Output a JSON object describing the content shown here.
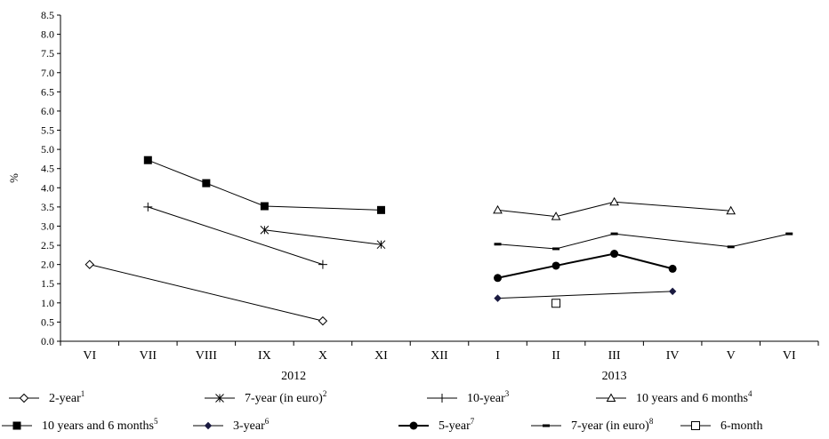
{
  "chart_data": {
    "type": "line",
    "ylabel": "%",
    "ylim": [
      0,
      8.5
    ],
    "y_ticks": [
      "0.0",
      "0.5",
      "1.0",
      "1.5",
      "2.0",
      "2.5",
      "3.0",
      "3.5",
      "4.0",
      "4.5",
      "5.0",
      "5.5",
      "6.0",
      "6.5",
      "7.0",
      "7.5",
      "8.0",
      "8.5"
    ],
    "categories": [
      "VI",
      "VII",
      "VIII",
      "IX",
      "X",
      "XI",
      "XII",
      "I",
      "II",
      "III",
      "IV",
      "V",
      "VI"
    ],
    "year_labels": [
      {
        "text": "2012",
        "category_index": 3.5
      },
      {
        "text": "2013",
        "category_index": 9
      }
    ],
    "legend_position": "bottom",
    "series": [
      {
        "name": "2-year",
        "sup": "1",
        "marker": "diamond-open",
        "line_width": 1,
        "values": [
          2.0,
          null,
          null,
          null,
          0.53,
          null,
          null,
          null,
          null,
          null,
          null,
          null,
          null
        ]
      },
      {
        "name": "7-year (in euro)",
        "sup": "2",
        "marker": "star",
        "line_width": 1,
        "values": [
          null,
          null,
          null,
          2.9,
          null,
          2.52,
          null,
          null,
          null,
          null,
          null,
          null,
          null
        ]
      },
      {
        "name": "10-year",
        "sup": "3",
        "marker": "plus",
        "line_width": 1,
        "values": [
          null,
          3.5,
          null,
          null,
          2.0,
          null,
          null,
          null,
          null,
          null,
          null,
          null,
          null
        ]
      },
      {
        "name": "10 years and 6 months",
        "sup": "4",
        "marker": "triangle-open",
        "line_width": 1,
        "values": [
          null,
          null,
          null,
          null,
          null,
          null,
          null,
          3.42,
          3.25,
          3.63,
          null,
          3.4,
          null
        ]
      },
      {
        "name": "10 years and 6 months",
        "sup": "5",
        "marker": "square-filled",
        "line_width": 1,
        "values": [
          null,
          4.72,
          4.12,
          3.52,
          null,
          3.42,
          null,
          null,
          null,
          null,
          null,
          null,
          null
        ]
      },
      {
        "name": "3-year",
        "sup": "6",
        "marker": "diamond-filled",
        "line_width": 1,
        "values": [
          null,
          null,
          null,
          null,
          null,
          null,
          null,
          1.12,
          null,
          null,
          1.3,
          null,
          null
        ]
      },
      {
        "name": "5-year",
        "sup": "7",
        "marker": "circle-filled",
        "line_width": 2,
        "values": [
          null,
          null,
          null,
          null,
          null,
          null,
          null,
          1.65,
          1.97,
          2.28,
          1.89,
          null,
          null
        ]
      },
      {
        "name": "7-year (in euro)",
        "sup": "8",
        "marker": "dash",
        "line_width": 1,
        "values": [
          null,
          null,
          null,
          null,
          null,
          null,
          null,
          2.53,
          2.41,
          2.8,
          null,
          2.46,
          2.8
        ]
      },
      {
        "name": "6-month",
        "sup": "",
        "marker": "square-open",
        "line_width": 1,
        "values": [
          null,
          null,
          null,
          null,
          null,
          null,
          null,
          null,
          0.99,
          null,
          null,
          null,
          null
        ]
      }
    ]
  }
}
